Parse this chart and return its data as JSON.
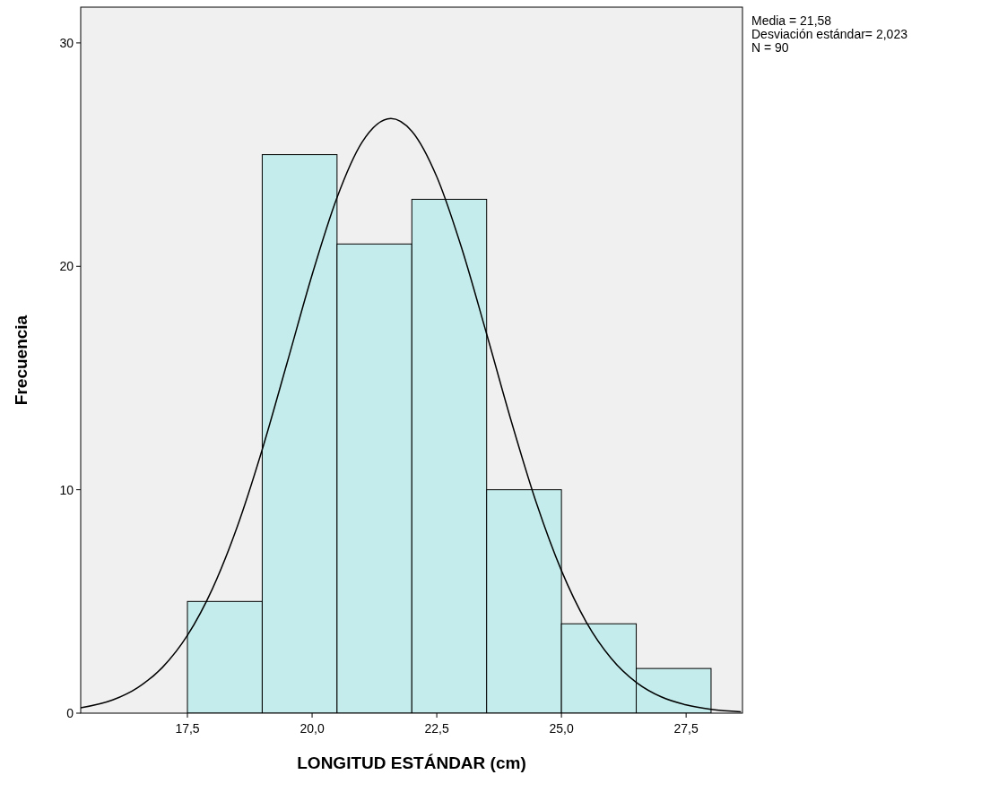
{
  "chart_data": {
    "type": "histogram",
    "xlabel": "LONGITUD ESTÁNDAR (cm)",
    "ylabel": "Frecuencia",
    "annotations": [
      "Media = 21,58",
      "Desviación estándar= 2,023",
      "N = 90"
    ],
    "xlim": [
      15.36,
      28.63
    ],
    "ylim": [
      0,
      31.6
    ],
    "xticks": [
      {
        "value": 17.5,
        "label": "17,5"
      },
      {
        "value": 20,
        "label": "20,0"
      },
      {
        "value": 22.5,
        "label": "22,5"
      },
      {
        "value": 25,
        "label": "25,0"
      },
      {
        "value": 27.5,
        "label": "27,5"
      }
    ],
    "yticks": [
      0,
      10,
      20,
      30
    ],
    "series": [
      {
        "color": "#c4ecec",
        "bins": [
          17.5,
          19,
          20.5,
          22,
          23.5,
          25,
          26.5,
          28
        ],
        "values": [
          5,
          25,
          21,
          23,
          10,
          4,
          2
        ]
      },
      {
        "type": "line",
        "color": "#000000",
        "x": [
          15.36,
          16,
          16.5,
          17,
          17.5,
          18,
          18.5,
          19,
          19.5,
          20,
          20.5,
          21,
          21.58,
          22,
          22.5,
          23,
          23.5,
          24,
          24.5,
          25,
          25.5,
          26,
          26.5,
          27,
          27.5,
          28,
          28.6
        ],
        "values": [
          0.24,
          0.59,
          1.14,
          2.05,
          3.48,
          5.56,
          8.35,
          11.8,
          15.69,
          19.62,
          23.08,
          25.55,
          26.62,
          26.05,
          24.01,
          20.81,
          16.97,
          13.02,
          9.39,
          6.38,
          4.07,
          2.45,
          1.38,
          0.73,
          0.37,
          0.17,
          0.06
        ]
      }
    ]
  }
}
